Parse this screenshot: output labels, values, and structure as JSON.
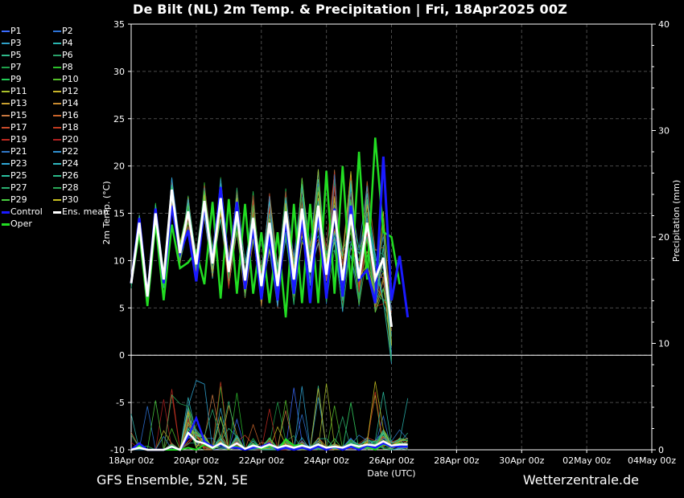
{
  "title": "De Bilt  (NL)  2m Temp. & Precipitation | Fri, 18Apr2025 00Z",
  "footer": {
    "left": "GFS Ensemble, 52N, 5E",
    "right": "Wetterzentrale.de"
  },
  "chart_data": {
    "type": "line",
    "title": "De Bilt  (NL)  2m Temp. & Precipitation | Fri, 18Apr2025 00Z",
    "xlabel": "Date (UTC)",
    "ylabel": "2m Temp. (°C)",
    "y2label": "Precipitation (mm)",
    "xlim_hours": [
      0,
      384
    ],
    "step_hours": 6,
    "ylim": [
      -10,
      35
    ],
    "y2lim": [
      0,
      40
    ],
    "yticks": [
      -10,
      -5,
      0,
      5,
      10,
      15,
      20,
      25,
      30,
      35
    ],
    "y2ticks": [
      0,
      10,
      20,
      30,
      40
    ],
    "x_tick_labels": [
      "18Apr 00z",
      "20Apr 00z",
      "22Apr 00z",
      "24Apr 00z",
      "26Apr 00z",
      "28Apr 00z",
      "30Apr 00z",
      "02May 00z",
      "04May 00z"
    ],
    "grid": true,
    "legend_placement": "left outside",
    "colors": {
      "control": "#1a1aff",
      "ens_mean": "#ffffff",
      "oper": "#22dd22",
      "members": [
        "#3b6cff",
        "#2d74d8",
        "#2fa0c8",
        "#2ab6b0",
        "#2fb88a",
        "#2aa06a",
        "#1fa04a",
        "#2cbf2c",
        "#22cc55",
        "#55c02a",
        "#a8c02a",
        "#c8b42a",
        "#c8a030",
        "#c88a30",
        "#c87840",
        "#c8642a",
        "#c84a2a",
        "#c03a20",
        "#c02a20",
        "#b02020",
        "#3078c8",
        "#3090d0",
        "#30a8d8",
        "#30b8c0",
        "#2ac0a0",
        "#2ab888",
        "#2ab070",
        "#2aa858",
        "#4ad040",
        "#c8c020"
      ]
    },
    "series": [
      {
        "name": "Control",
        "temp": [
          7.6,
          14.5,
          6.2,
          15.5,
          7.6,
          15.8,
          10.8,
          13.2,
          7.8,
          16.0,
          9.8,
          17.8,
          9.0,
          16.2,
          7.0,
          13.6,
          5.9,
          12.8,
          5.8,
          14.5,
          6.5,
          14.5,
          5.5,
          15.5,
          6.0,
          15.5,
          6.2,
          15.8,
          8.0,
          9.0,
          5.5,
          21.0,
          5.8,
          10.5,
          4.0
        ],
        "precip": [
          0,
          0.6,
          0,
          0,
          0,
          0.3,
          0,
          1.2,
          3.0,
          0.8,
          0.3,
          0.5,
          0.2,
          0.2,
          0,
          0.2,
          0.3,
          0.6,
          0,
          0.2,
          0,
          0.2,
          0,
          0.3,
          0,
          0.3,
          0,
          0.3,
          0,
          0.4,
          0.2,
          0.6,
          0.3,
          0.3,
          0.3
        ]
      },
      {
        "name": "Ens. mean",
        "temp": [
          7.6,
          14.0,
          6.2,
          15.0,
          8.0,
          17.5,
          10.8,
          15.2,
          9.6,
          16.3,
          9.7,
          16.6,
          8.8,
          15.2,
          7.9,
          14.5,
          7.3,
          14.0,
          7.3,
          15.2,
          8.0,
          15.5,
          8.8,
          15.8,
          8.5,
          15.3,
          7.9,
          14.9,
          8.1,
          14.0,
          8.1,
          10.3,
          3.0
        ],
        "precip": [
          0,
          0.2,
          0,
          0,
          0,
          0.3,
          0,
          1.6,
          0.8,
          0.6,
          0.2,
          0.6,
          0.2,
          0.6,
          0.1,
          0.4,
          0.2,
          0.5,
          0.2,
          0.4,
          0.2,
          0.4,
          0.2,
          0.5,
          0.2,
          0.3,
          0.2,
          0.5,
          0.3,
          0.5,
          0.4,
          0.8,
          0.4,
          0.5,
          0.5
        ]
      },
      {
        "name": "Oper",
        "temp": [
          7.6,
          13.0,
          5.2,
          14.0,
          5.8,
          13.8,
          9.2,
          9.8,
          11.0,
          7.5,
          16.2,
          6.0,
          16.5,
          6.5,
          16.0,
          6.5,
          13.0,
          5.5,
          13.0,
          4.0,
          16.0,
          5.5,
          16.0,
          5.5,
          19.5,
          6.5,
          20.0,
          7.0,
          21.5,
          8.0,
          23.0,
          13.0,
          12.5,
          7.5
        ],
        "precip": [
          0,
          0.4,
          0,
          0,
          0,
          0,
          0,
          0.2,
          0,
          0.5,
          0.1,
          0.6,
          0.3,
          0.3,
          0,
          0.3,
          0.1,
          0.4,
          0,
          1.0,
          0.4,
          0.5,
          0,
          0.3,
          0,
          0.3,
          0,
          0.3,
          0.2,
          0.3,
          0,
          0.5,
          0.3,
          0.6,
          0.3
        ]
      }
    ],
    "members": [
      "P1",
      "P2",
      "P3",
      "P4",
      "P5",
      "P6",
      "P7",
      "P8",
      "P9",
      "P10",
      "P11",
      "P12",
      "P13",
      "P14",
      "P15",
      "P16",
      "P17",
      "P18",
      "P19",
      "P20",
      "P21",
      "P22",
      "P23",
      "P24",
      "P25",
      "P26",
      "P27",
      "P28",
      "P29",
      "P30"
    ]
  },
  "legend": {
    "items": [
      "P1",
      "P2",
      "P3",
      "P4",
      "P5",
      "P6",
      "P7",
      "P8",
      "P9",
      "P10",
      "P11",
      "P12",
      "P13",
      "P14",
      "P15",
      "P16",
      "P17",
      "P18",
      "P19",
      "P20",
      "P21",
      "P22",
      "P23",
      "P24",
      "P25",
      "P26",
      "P27",
      "P28",
      "P29",
      "P30",
      "Control",
      "Ens. mean",
      "Oper"
    ]
  }
}
